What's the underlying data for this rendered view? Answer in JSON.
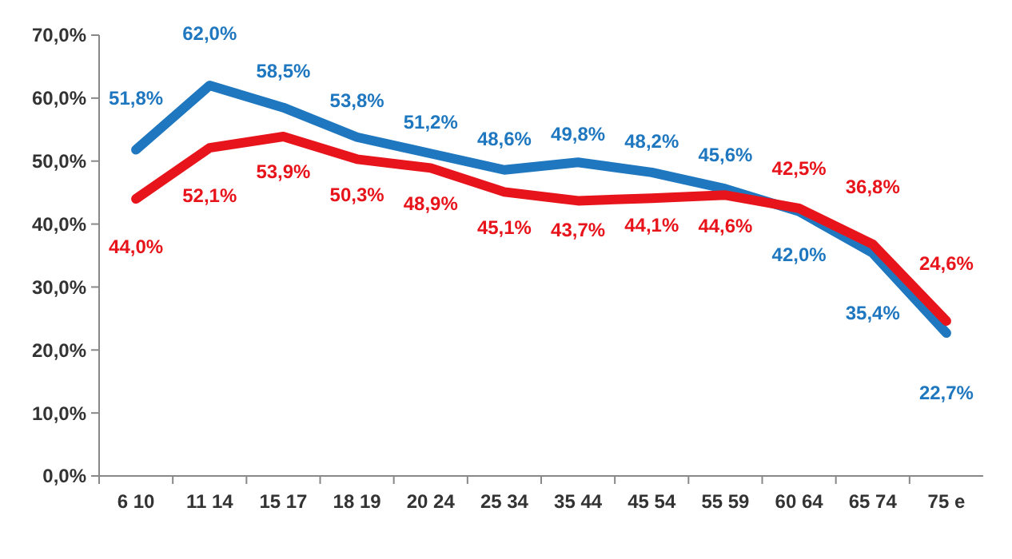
{
  "chart_data": {
    "type": "line",
    "categories": [
      "6 10",
      "11 14",
      "15 17",
      "18 19",
      "20 24",
      "25 34",
      "35 44",
      "45 54",
      "55 59",
      "60 64",
      "65 74",
      "75 e"
    ],
    "ylim": [
      0,
      70
    ],
    "yticks": [
      {
        "value": 0,
        "label": "0,0%"
      },
      {
        "value": 10,
        "label": "10,0%"
      },
      {
        "value": 20,
        "label": "20,0%"
      },
      {
        "value": 30,
        "label": "30,0%"
      },
      {
        "value": 40,
        "label": "40,0%"
      },
      {
        "value": 50,
        "label": "50,0%"
      },
      {
        "value": 60,
        "label": "60,0%"
      },
      {
        "value": 70,
        "label": "70,0%"
      }
    ],
    "grid": false,
    "marker": "none",
    "line_style": "solid",
    "series": [
      {
        "color": "#1f77c0",
        "values": [
          51.8,
          62.0,
          58.5,
          53.8,
          51.2,
          48.6,
          49.8,
          48.2,
          45.6,
          42.0,
          35.4,
          22.7
        ],
        "value_labels": [
          "51,8%",
          "62,0%",
          "58,5%",
          "53,8%",
          "51,2%",
          "48,6%",
          "49,8%",
          "48,2%",
          "45,6%",
          "42,0%",
          "35,4%",
          "22,7%"
        ]
      },
      {
        "color": "#e8141b",
        "values": [
          44.0,
          52.1,
          53.9,
          50.3,
          48.9,
          45.1,
          43.7,
          44.1,
          44.6,
          42.5,
          36.8,
          24.6
        ],
        "value_labels": [
          "44,0%",
          "52,1%",
          "53,9%",
          "50,3%",
          "48,9%",
          "45,1%",
          "43,7%",
          "44,1%",
          "44,6%",
          "42,5%",
          "36,8%",
          "24,6%"
        ]
      }
    ]
  }
}
